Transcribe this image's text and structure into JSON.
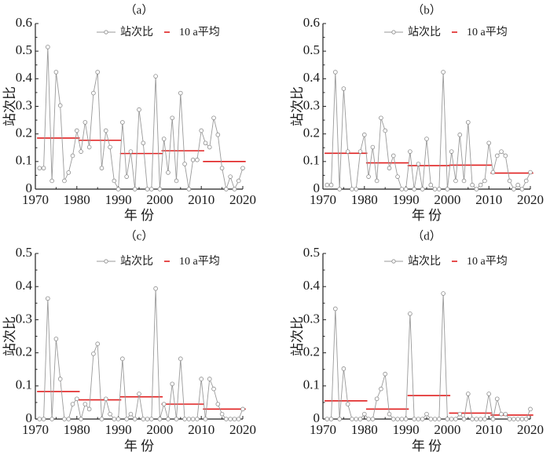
{
  "chart_data": [
    {
      "type": "line",
      "title": "（a）",
      "xlabel": "年 份",
      "ylabel": "站次比",
      "xlim": [
        1970,
        2020
      ],
      "ylim": [
        0,
        0.6
      ],
      "xticks": [
        1970,
        1980,
        1990,
        2000,
        2010,
        2020
      ],
      "yticks": [
        0,
        0.1,
        0.2,
        0.3,
        0.4,
        0.5,
        0.6
      ],
      "ytick_labels": [
        "0",
        "0.1",
        "0.2",
        "0.3",
        "0.4",
        "0.5",
        "0.6"
      ],
      "legend": [
        "站次比",
        "10 a平均"
      ],
      "legend_position": "top-center",
      "x": [
        1971,
        1972,
        1973,
        1974,
        1975,
        1976,
        1977,
        1978,
        1979,
        1980,
        1981,
        1982,
        1983,
        1984,
        1985,
        1986,
        1987,
        1988,
        1989,
        1990,
        1991,
        1992,
        1993,
        1994,
        1995,
        1996,
        1997,
        1998,
        1999,
        2000,
        2001,
        2002,
        2003,
        2004,
        2005,
        2006,
        2007,
        2008,
        2009,
        2010,
        2011,
        2012,
        2013,
        2014,
        2015,
        2016,
        2017,
        2018,
        2019,
        2020
      ],
      "series": [
        {
          "name": "站次比",
          "values": [
            0.076,
            0.076,
            0.515,
            0.03,
            0.424,
            0.303,
            0.03,
            0.06,
            0.121,
            0.212,
            0.136,
            0.242,
            0.152,
            0.348,
            0.424,
            0.076,
            0.212,
            0.152,
            0.03,
            0,
            0.242,
            0.045,
            0.136,
            0,
            0.288,
            0.167,
            0,
            0,
            0.409,
            0,
            0.182,
            0.06,
            0.258,
            0.03,
            0.348,
            0.091,
            0,
            0.106,
            0.106,
            0.212,
            0.167,
            0.152,
            0.258,
            0.197,
            0.076,
            0,
            0.045,
            0,
            0.03,
            0.076
          ]
        },
        {
          "name": "10 a平均",
          "decades": [
            "1971-1980",
            "1981-1990",
            "1991-2000",
            "2001-2010",
            "2011-2020"
          ],
          "values": [
            0.185,
            0.177,
            0.129,
            0.139,
            0.1
          ]
        }
      ]
    },
    {
      "type": "line",
      "title": "（b）",
      "xlabel": "年 份",
      "ylabel": "站次比",
      "xlim": [
        1970,
        2020
      ],
      "ylim": [
        0,
        0.6
      ],
      "xticks": [
        1970,
        1980,
        1990,
        2000,
        2010,
        2020
      ],
      "yticks": [
        0,
        0.1,
        0.2,
        0.3,
        0.4,
        0.5,
        0.6
      ],
      "ytick_labels": [
        "0",
        "0.1",
        "0.2",
        "0.3",
        "0.4",
        "0.5",
        "0.6"
      ],
      "legend": [
        "站次比",
        "10 a平均"
      ],
      "legend_position": "top-center",
      "x": [
        1971,
        1972,
        1973,
        1974,
        1975,
        1976,
        1977,
        1978,
        1979,
        1980,
        1981,
        1982,
        1983,
        1984,
        1985,
        1986,
        1987,
        1988,
        1989,
        1990,
        1991,
        1992,
        1993,
        1994,
        1995,
        1996,
        1997,
        1998,
        1999,
        2000,
        2001,
        2002,
        2003,
        2004,
        2005,
        2006,
        2007,
        2008,
        2009,
        2010,
        2011,
        2012,
        2013,
        2014,
        2015,
        2016,
        2017,
        2018,
        2019,
        2020
      ],
      "series": [
        {
          "name": "站次比",
          "values": [
            0.015,
            0.015,
            0.424,
            0,
            0.364,
            0.136,
            0,
            0,
            0.136,
            0.197,
            0.045,
            0.152,
            0.03,
            0.258,
            0.212,
            0.076,
            0.121,
            0.045,
            0,
            0,
            0.136,
            0,
            0.091,
            0,
            0.182,
            0.015,
            0,
            0,
            0.424,
            0,
            0.136,
            0.03,
            0.197,
            0.03,
            0.242,
            0.015,
            0,
            0.015,
            0.03,
            0.167,
            0.061,
            0.121,
            0.136,
            0.121,
            0.03,
            0,
            0.015,
            0,
            0.03,
            0.061
          ]
        },
        {
          "name": "10 a平均",
          "decades": [
            "1971-1980",
            "1981-1990",
            "1991-2000",
            "2001-2010",
            "2011-2020"
          ],
          "values": [
            0.13,
            0.095,
            0.085,
            0.087,
            0.058
          ]
        }
      ]
    },
    {
      "type": "line",
      "title": "（c）",
      "xlabel": "年 份",
      "ylabel": "站次比",
      "xlim": [
        1970,
        2020
      ],
      "ylim": [
        0,
        0.5
      ],
      "xticks": [
        1970,
        1980,
        1990,
        2000,
        2010,
        2020
      ],
      "yticks": [
        0,
        0.1,
        0.2,
        0.3,
        0.4,
        0.5
      ],
      "ytick_labels": [
        "0",
        "0.1",
        "0.2",
        "0.3",
        "0.4",
        "0.5"
      ],
      "legend": [
        "站次比",
        "10 a平均"
      ],
      "legend_position": "top-center",
      "x": [
        1971,
        1972,
        1973,
        1974,
        1975,
        1976,
        1977,
        1978,
        1979,
        1980,
        1981,
        1982,
        1983,
        1984,
        1985,
        1986,
        1987,
        1988,
        1989,
        1990,
        1991,
        1992,
        1993,
        1994,
        1995,
        1996,
        1997,
        1998,
        1999,
        2000,
        2001,
        2002,
        2003,
        2004,
        2005,
        2006,
        2007,
        2008,
        2009,
        2010,
        2011,
        2012,
        2013,
        2014,
        2015,
        2016,
        2017,
        2018,
        2019,
        2020
      ],
      "series": [
        {
          "name": "站次比",
          "values": [
            0,
            0,
            0.364,
            0,
            0.242,
            0.121,
            0,
            0,
            0.045,
            0.061,
            0,
            0.045,
            0.03,
            0.197,
            0.227,
            0,
            0.061,
            0.015,
            0,
            0,
            0.182,
            0,
            0.015,
            0,
            0.076,
            0,
            0,
            0,
            0.394,
            0,
            0.045,
            0,
            0.106,
            0,
            0.182,
            0,
            0,
            0,
            0,
            0.121,
            0,
            0.121,
            0.091,
            0.045,
            0.015,
            0,
            0,
            0,
            0,
            0.03
          ]
        },
        {
          "name": "10 a平均",
          "decades": [
            "1971-1980",
            "1981-1990",
            "1991-2000",
            "2001-2010",
            "2011-2020"
          ],
          "values": [
            0.083,
            0.058,
            0.067,
            0.045,
            0.03
          ]
        }
      ]
    },
    {
      "type": "line",
      "title": "（d）",
      "xlabel": "年 份",
      "ylabel": "站次比",
      "xlim": [
        1970,
        2020
      ],
      "ylim": [
        0,
        0.5
      ],
      "xticks": [
        1970,
        1980,
        1990,
        2000,
        2010,
        2020
      ],
      "yticks": [
        0,
        0.1,
        0.2,
        0.3,
        0.4,
        0.5
      ],
      "ytick_labels": [
        "0",
        "0.1",
        "0.2",
        "0.3",
        "0.4",
        "0.5"
      ],
      "legend": [
        "站次比",
        "10 a平均"
      ],
      "legend_position": "top-center",
      "x": [
        1971,
        1972,
        1973,
        1974,
        1975,
        1976,
        1977,
        1978,
        1979,
        1980,
        1981,
        1982,
        1983,
        1984,
        1985,
        1986,
        1987,
        1988,
        1989,
        1990,
        1991,
        1992,
        1993,
        1994,
        1995,
        1996,
        1997,
        1998,
        1999,
        2000,
        2001,
        2002,
        2003,
        2004,
        2005,
        2006,
        2007,
        2008,
        2009,
        2010,
        2011,
        2012,
        2013,
        2014,
        2015,
        2016,
        2017,
        2018,
        2019,
        2020
      ],
      "series": [
        {
          "name": "站次比",
          "values": [
            0,
            0,
            0.333,
            0,
            0.152,
            0.045,
            0,
            0,
            0,
            0.015,
            0,
            0,
            0.061,
            0.091,
            0.136,
            0.015,
            0,
            0,
            0,
            0,
            0.318,
            0,
            0,
            0,
            0.015,
            0,
            0,
            0,
            0.379,
            0,
            0,
            0,
            0.015,
            0,
            0.076,
            0,
            0,
            0,
            0,
            0.076,
            0,
            0.061,
            0.015,
            0.015,
            0,
            0,
            0,
            0,
            0,
            0.03
          ]
        },
        {
          "name": "10 a平均",
          "decades": [
            "1971-1980",
            "1981-1990",
            "1991-2000",
            "2001-2010",
            "2011-2020"
          ],
          "values": [
            0.055,
            0.03,
            0.071,
            0.018,
            0.012
          ]
        }
      ]
    }
  ]
}
